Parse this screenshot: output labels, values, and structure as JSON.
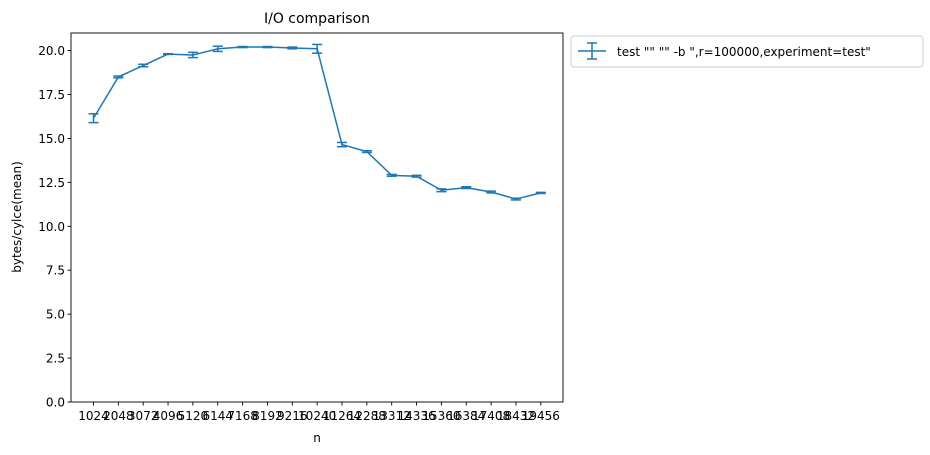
{
  "chart_data": {
    "type": "line",
    "title": "I/O comparison",
    "xlabel": "n",
    "ylabel": "bytes/cylce(mean)",
    "ylim": [
      0,
      21
    ],
    "yticks": [
      0.0,
      2.5,
      5.0,
      7.5,
      10.0,
      12.5,
      15.0,
      17.5,
      20.0
    ],
    "ytick_labels": [
      "0.0",
      "2.5",
      "5.0",
      "7.5",
      "10.0",
      "12.5",
      "15.0",
      "17.5",
      "20.0"
    ],
    "categories": [
      "1024",
      "2048",
      "3072",
      "4096",
      "5120",
      "6144",
      "7168",
      "8192",
      "9216",
      "10240",
      "11264",
      "12288",
      "13312",
      "14336",
      "15360",
      "16384",
      "17408",
      "18432",
      "19456"
    ],
    "legend_position": "outside-upper-right",
    "grid": false,
    "series": [
      {
        "name": "test \"\"  \"\" -b \",r=100000,experiment=test\"",
        "color": "#1f77b4",
        "values": [
          16.15,
          18.5,
          19.15,
          19.8,
          19.75,
          20.1,
          20.2,
          20.2,
          20.15,
          20.1,
          14.65,
          14.25,
          12.9,
          12.85,
          12.05,
          12.2,
          11.95,
          11.55,
          11.9
        ],
        "errors": [
          0.25,
          0.05,
          0.07,
          0.02,
          0.15,
          0.15,
          0.03,
          0.03,
          0.05,
          0.25,
          0.12,
          0.05,
          0.05,
          0.05,
          0.08,
          0.05,
          0.05,
          0.05,
          0.03
        ]
      }
    ]
  }
}
